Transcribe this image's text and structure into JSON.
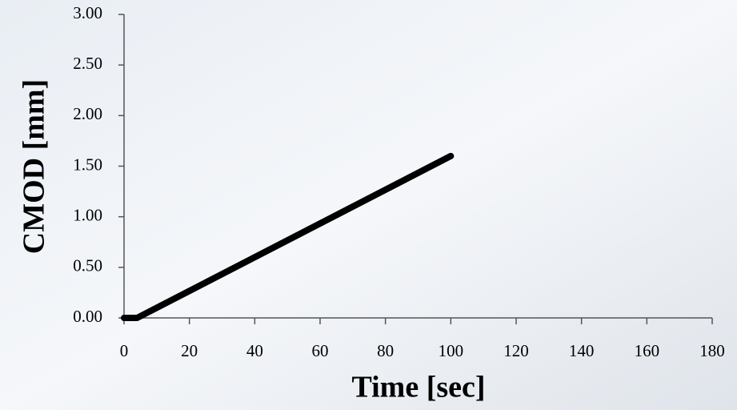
{
  "chart_data": {
    "type": "line",
    "xlabel": "Time [sec]",
    "ylabel": "CMOD [mm]",
    "x": [
      0,
      4,
      100
    ],
    "values": [
      0,
      0,
      1.6
    ],
    "color": "#000000",
    "xlim": [
      0,
      180
    ],
    "ylim": [
      0,
      3
    ],
    "xticks": [
      0,
      20,
      40,
      60,
      80,
      100,
      120,
      140,
      160,
      180
    ],
    "yticks": [
      {
        "value": 0,
        "label": "0.00"
      },
      {
        "value": 0.5,
        "label": "0.50"
      },
      {
        "value": 1,
        "label": "1.00"
      },
      {
        "value": 1.5,
        "label": "1.50"
      },
      {
        "value": 2,
        "label": "2.00"
      },
      {
        "value": 2.5,
        "label": "2.50"
      },
      {
        "value": 3,
        "label": "3.00"
      }
    ]
  }
}
